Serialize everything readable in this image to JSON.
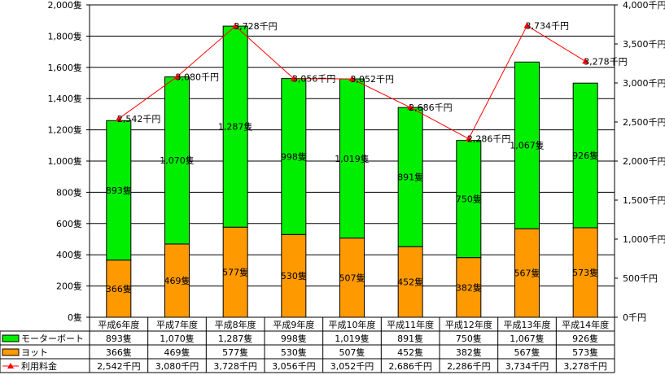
{
  "chart_data": {
    "type": "bar",
    "stacked": true,
    "categories": [
      "平成6年度",
      "平成7年度",
      "平成8年度",
      "平成9年度",
      "平成10年度",
      "平成11年度",
      "平成12年度",
      "平成13年度",
      "平成14年度"
    ],
    "series": [
      {
        "name": "ヨット",
        "color": "#ff9900",
        "values": [
          366,
          469,
          577,
          530,
          507,
          452,
          382,
          567,
          573
        ],
        "labels": [
          "366隻",
          "469隻",
          "577隻",
          "530隻",
          "507隻",
          "452隻",
          "382隻",
          "567隻",
          "573隻"
        ]
      },
      {
        "name": "モーターボート",
        "color": "#00ee00",
        "values": [
          893,
          1070,
          1287,
          998,
          1019,
          891,
          750,
          1067,
          926
        ],
        "labels": [
          "893隻",
          "1,070隻",
          "1,287隻",
          "998隻",
          "1,019隻",
          "891隻",
          "750隻",
          "1,067隻",
          "926隻"
        ]
      }
    ],
    "line_series": {
      "name": "利用料金",
      "color": "#ff0000",
      "axis": "right",
      "values": [
        2542,
        3080,
        3728,
        3056,
        3052,
        2686,
        2286,
        3734,
        3278
      ],
      "labels": [
        "2,542千円",
        "3,080千円",
        "3,728千円",
        "3,056千円",
        "3,052千円",
        "2,686千円",
        "2,286千円",
        "3,734千円",
        "3,278千円"
      ]
    },
    "left_axis": {
      "ylim": [
        0,
        2000
      ],
      "ticks": [
        0,
        200,
        400,
        600,
        800,
        1000,
        1200,
        1400,
        1600,
        1800,
        2000
      ],
      "tick_labels": [
        "0隻",
        "200隻",
        "400隻",
        "600隻",
        "800隻",
        "1,000隻",
        "1,200隻",
        "1,400隻",
        "1,600隻",
        "1,800隻",
        "2,000隻"
      ]
    },
    "right_axis": {
      "ylim": [
        0,
        4000
      ],
      "ticks": [
        0,
        500,
        1000,
        1500,
        2000,
        2500,
        3000,
        3500,
        4000
      ],
      "tick_labels": [
        "0千円",
        "500千円",
        "1,000千円",
        "1,500千円",
        "2,000千円",
        "2,500千円",
        "3,000千円",
        "3,500千円",
        "4,000千円"
      ]
    },
    "grid": true,
    "data_table": {
      "rows": [
        {
          "series": "モーターボート",
          "cells": [
            "893隻",
            "1,070隻",
            "1,287隻",
            "998隻",
            "1,019隻",
            "891隻",
            "750隻",
            "1,067隻",
            "926隻"
          ]
        },
        {
          "series": "ヨット",
          "cells": [
            "366隻",
            "469隻",
            "577隻",
            "530隻",
            "507隻",
            "452隻",
            "382隻",
            "567隻",
            "573隻"
          ]
        },
        {
          "series": "利用料金",
          "cells": [
            "2,542千円",
            "3,080千円",
            "3,728千円",
            "3,056千円",
            "3,052千円",
            "2,686千円",
            "2,286千円",
            "3,734千円",
            "3,278千円"
          ]
        }
      ]
    }
  }
}
